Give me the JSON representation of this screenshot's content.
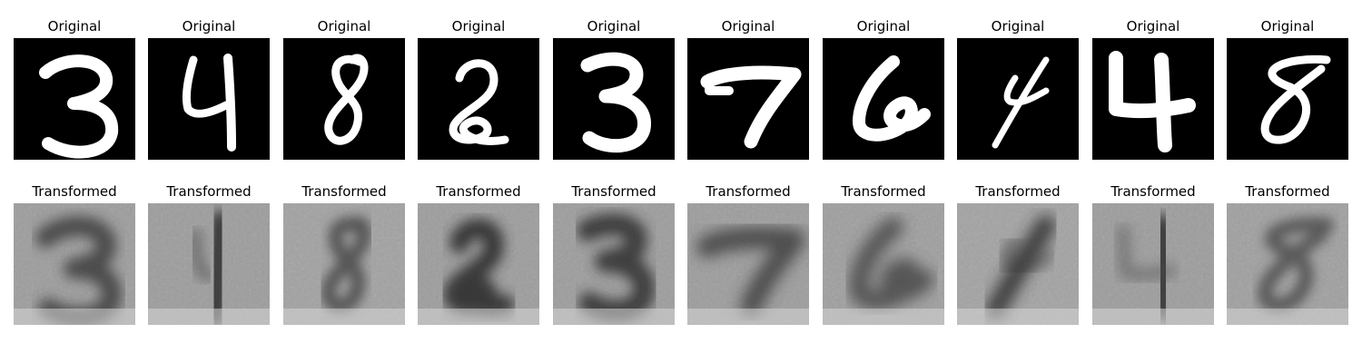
{
  "figure": {
    "rows": [
      {
        "row_title": "Original",
        "digits": [
          "3",
          "4",
          "8",
          "2",
          "3",
          "7",
          "6",
          "4",
          "4",
          "8"
        ]
      },
      {
        "row_title": "Transformed",
        "digits": [
          "3",
          "4",
          "8",
          "2",
          "3",
          "7",
          "6",
          "4",
          "4",
          "8"
        ]
      }
    ],
    "labels": {
      "original": "Original",
      "transformed": "Transformed"
    },
    "colors": {
      "original_bg": "#000000",
      "original_fg": "#ffffff",
      "transformed_bg": "#9a9a9a",
      "transformed_fg": "#3f3f3f"
    }
  }
}
